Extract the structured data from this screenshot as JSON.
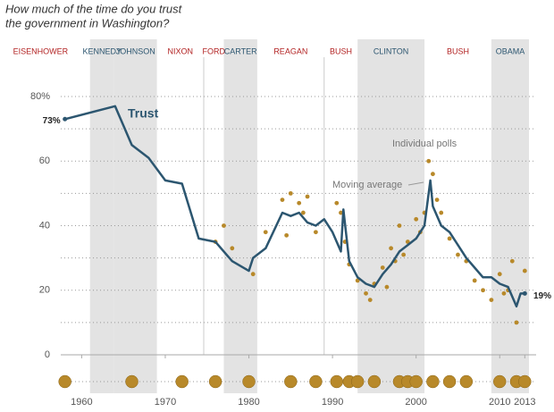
{
  "chart_data": {
    "type": "line",
    "title_lines": [
      "How much of the time do you trust",
      "the government in Washington?"
    ],
    "series_label": "Trust",
    "annotations": {
      "polls": "Individual polls",
      "average": "Moving average",
      "start": "73%",
      "end": "19%"
    },
    "xlim": [
      1957.5,
      2013.5
    ],
    "xticks": [
      1960,
      1970,
      1980,
      1990,
      2000,
      2010,
      2013
    ],
    "ylim": [
      0,
      80
    ],
    "yticks": [
      0,
      20,
      40,
      60,
      {
        "value": 80,
        "label": "80%"
      }
    ],
    "ygrid_minor": [
      10,
      30,
      50,
      70
    ],
    "line_color": "#2c5670",
    "poll_color": "#b8892a",
    "presidents": [
      {
        "name": "EISENHOWER",
        "start": 1953,
        "end": 1961,
        "color": "#b22222",
        "shaded": false
      },
      {
        "name": "KENNEDY",
        "start": 1961,
        "end": 1963.9,
        "color": "#2c5670",
        "shaded": true
      },
      {
        "name": "JOHNSON",
        "start": 1963.9,
        "end": 1969,
        "color": "#2c5670",
        "shaded": true
      },
      {
        "name": "NIXON",
        "start": 1969,
        "end": 1974.6,
        "color": "#b22222",
        "shaded": false
      },
      {
        "name": "FORD",
        "start": 1974.6,
        "end": 1977,
        "color": "#b22222",
        "shaded": false
      },
      {
        "name": "CARTER",
        "start": 1977,
        "end": 1981,
        "color": "#2c5670",
        "shaded": true
      },
      {
        "name": "REAGAN",
        "start": 1981,
        "end": 1989,
        "color": "#b22222",
        "shaded": false
      },
      {
        "name": "BUSH",
        "start": 1989,
        "end": 1993,
        "color": "#b22222",
        "shaded": false
      },
      {
        "name": "CLINTON",
        "start": 1993,
        "end": 2001,
        "color": "#2c5670",
        "shaded": true
      },
      {
        "name": "BUSH",
        "start": 2001,
        "end": 2009,
        "color": "#b22222",
        "shaded": false
      },
      {
        "name": "OBAMA",
        "start": 2009,
        "end": 2013.5,
        "color": "#2c5670",
        "shaded": true
      }
    ],
    "average": {
      "x": [
        1958,
        1964,
        1966,
        1968,
        1970,
        1972,
        1974,
        1976,
        1978,
        1980,
        1980.5,
        1982,
        1984,
        1985,
        1986,
        1987,
        1988,
        1989,
        1990,
        1991,
        1991.3,
        1992,
        1993,
        1994,
        1995,
        1996,
        1997,
        1998,
        1999,
        2000,
        2001,
        2001.7,
        2002,
        2003,
        2004,
        2005,
        2006,
        2007,
        2008,
        2009,
        2010,
        2011,
        2012,
        2012.5,
        2013
      ],
      "values": [
        73,
        77,
        65,
        61,
        54,
        53,
        36,
        35,
        29,
        26,
        30,
        33,
        44,
        43,
        44,
        41,
        40,
        42,
        38,
        32,
        45,
        29,
        24,
        22,
        21,
        25,
        28,
        32,
        34,
        36,
        40,
        54,
        46,
        40,
        38,
        34,
        30,
        27,
        24,
        24,
        22,
        21,
        15,
        19,
        19
      ]
    },
    "polls": {
      "x": [
        1976,
        1977,
        1978,
        1980.5,
        1982,
        1984,
        1984.5,
        1985,
        1986,
        1986.5,
        1987,
        1988,
        1990.5,
        1991,
        1991.5,
        1992,
        1993,
        1994,
        1994.5,
        1995,
        1996,
        1996.5,
        1997,
        1997.5,
        1998,
        1998.5,
        1999,
        2000,
        2000.5,
        2001,
        2001.5,
        2002,
        2002.5,
        2003,
        2004,
        2005,
        2006,
        2007,
        2008,
        2009,
        2010,
        2010.5,
        2011,
        2011.5,
        2012,
        2013
      ],
      "values": [
        35,
        40,
        33,
        25,
        38,
        48,
        37,
        50,
        47,
        44,
        49,
        38,
        47,
        44,
        35,
        28,
        23,
        19,
        17,
        22,
        27,
        21,
        33,
        29,
        40,
        31,
        35,
        42,
        38,
        44,
        60,
        56,
        48,
        44,
        36,
        31,
        29,
        23,
        20,
        17,
        25,
        19,
        20,
        29,
        10,
        26
      ]
    },
    "survey_years": [
      1958,
      1966,
      1972,
      1976,
      1980,
      1985,
      1988,
      1990.5,
      1992,
      1993,
      1995,
      1998,
      1999,
      2000,
      2002,
      2004,
      2006,
      2010,
      2012,
      2013
    ]
  }
}
